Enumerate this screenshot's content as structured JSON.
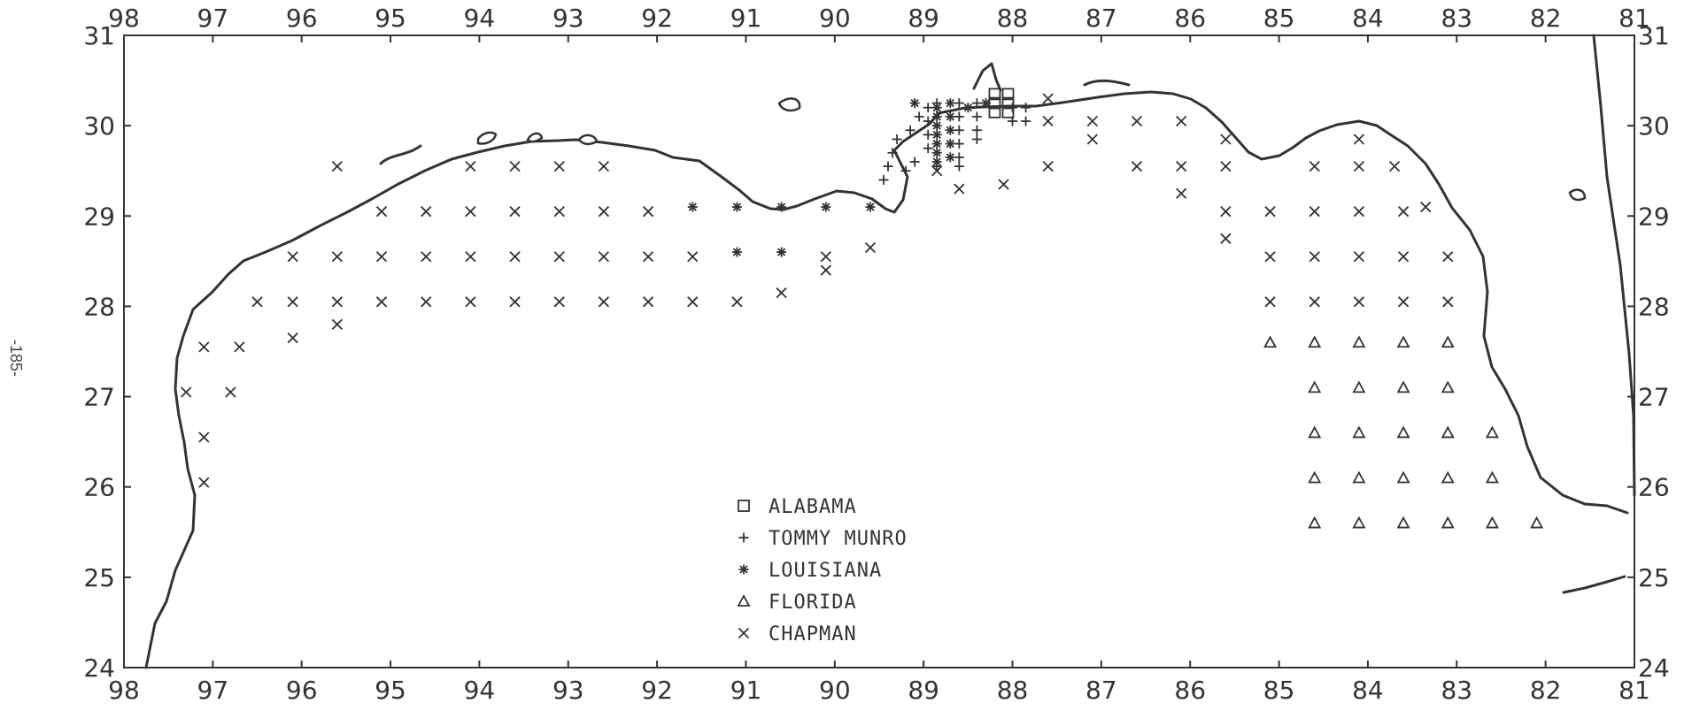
{
  "page_number": "-185-",
  "legend": [
    {
      "label": "ALABAMA",
      "symbol": "square"
    },
    {
      "label": "TOMMY MUNRO",
      "symbol": "plus"
    },
    {
      "label": "LOUISIANA",
      "symbol": "star"
    },
    {
      "label": "FLORIDA",
      "symbol": "triangle"
    },
    {
      "label": "CHAPMAN",
      "symbol": "x"
    }
  ],
  "chart_data": {
    "type": "scatter",
    "title": "",
    "xlabel": "",
    "ylabel": "",
    "x_ticks_top": [
      "98",
      "97",
      "96",
      "95",
      "94",
      "93",
      "92",
      "91",
      "90",
      "89",
      "88",
      "87",
      "86",
      "85",
      "84",
      "83",
      "82",
      "81"
    ],
    "x_ticks_bottom": [
      "98",
      "97",
      "96",
      "95",
      "94",
      "93",
      "92",
      "91",
      "90",
      "89",
      "88",
      "87",
      "86",
      "85",
      "84",
      "83",
      "82",
      "81"
    ],
    "y_ticks_left": [
      "31",
      "30",
      "29",
      "28",
      "27",
      "26",
      "25",
      "24"
    ],
    "y_ticks_right": [
      "31",
      "30",
      "29",
      "28",
      "27",
      "26",
      "25",
      "24"
    ],
    "xlim": [
      98,
      81
    ],
    "ylim": [
      24,
      31
    ],
    "series": [
      {
        "name": "ALABAMA",
        "symbol": "square",
        "points": [
          [
            88.2,
            30.35
          ],
          [
            88.05,
            30.35
          ],
          [
            88.2,
            30.25
          ],
          [
            88.05,
            30.25
          ],
          [
            88.2,
            30.15
          ],
          [
            88.05,
            30.15
          ]
        ]
      },
      {
        "name": "TOMMY MUNRO",
        "symbol": "plus",
        "points": [
          [
            89.3,
            29.85
          ],
          [
            89.35,
            29.7
          ],
          [
            89.4,
            29.55
          ],
          [
            89.45,
            29.4
          ],
          [
            89.2,
            29.5
          ],
          [
            89.1,
            29.6
          ],
          [
            89.15,
            29.95
          ],
          [
            89.05,
            30.1
          ],
          [
            88.95,
            30.2
          ],
          [
            88.95,
            30.05
          ],
          [
            88.95,
            29.9
          ],
          [
            88.95,
            29.75
          ],
          [
            88.85,
            29.55
          ],
          [
            88.85,
            30.25
          ],
          [
            88.6,
            30.25
          ],
          [
            88.6,
            30.1
          ],
          [
            88.6,
            29.95
          ],
          [
            88.6,
            29.8
          ],
          [
            88.6,
            29.65
          ],
          [
            88.6,
            29.55
          ],
          [
            88.4,
            30.25
          ],
          [
            88.4,
            30.1
          ],
          [
            88.4,
            29.95
          ],
          [
            88.4,
            29.85
          ],
          [
            88.0,
            30.2
          ],
          [
            88.0,
            30.05
          ],
          [
            87.85,
            30.2
          ],
          [
            87.85,
            30.05
          ]
        ]
      },
      {
        "name": "LOUISIANA",
        "symbol": "star",
        "points": [
          [
            91.6,
            29.1
          ],
          [
            91.1,
            29.1
          ],
          [
            90.6,
            29.1
          ],
          [
            90.1,
            29.1
          ],
          [
            89.6,
            29.1
          ],
          [
            91.1,
            28.6
          ],
          [
            90.6,
            28.6
          ],
          [
            88.85,
            30.2
          ],
          [
            88.85,
            30.1
          ],
          [
            88.85,
            30.0
          ],
          [
            88.85,
            29.9
          ],
          [
            88.85,
            29.8
          ],
          [
            88.85,
            29.7
          ],
          [
            88.85,
            29.6
          ],
          [
            88.7,
            30.25
          ],
          [
            88.7,
            30.1
          ],
          [
            88.7,
            29.95
          ],
          [
            88.7,
            29.8
          ],
          [
            88.7,
            29.65
          ],
          [
            88.3,
            30.25
          ],
          [
            88.5,
            30.2
          ],
          [
            89.1,
            30.25
          ]
        ]
      },
      {
        "name": "FLORIDA",
        "symbol": "triangle",
        "points": [
          [
            85.1,
            27.6
          ],
          [
            84.6,
            27.6
          ],
          [
            84.1,
            27.6
          ],
          [
            83.6,
            27.6
          ],
          [
            83.1,
            27.6
          ],
          [
            84.6,
            27.1
          ],
          [
            84.1,
            27.1
          ],
          [
            83.6,
            27.1
          ],
          [
            83.1,
            27.1
          ],
          [
            84.6,
            26.6
          ],
          [
            84.1,
            26.6
          ],
          [
            83.6,
            26.6
          ],
          [
            83.1,
            26.6
          ],
          [
            82.6,
            26.6
          ],
          [
            84.6,
            26.1
          ],
          [
            84.1,
            26.1
          ],
          [
            83.6,
            26.1
          ],
          [
            83.1,
            26.1
          ],
          [
            82.6,
            26.1
          ],
          [
            84.6,
            25.6
          ],
          [
            84.1,
            25.6
          ],
          [
            83.6,
            25.6
          ],
          [
            83.1,
            25.6
          ],
          [
            82.6,
            25.6
          ],
          [
            82.1,
            25.6
          ]
        ]
      },
      {
        "name": "CHAPMAN",
        "symbol": "x",
        "points": [
          [
            97.3,
            27.05
          ],
          [
            97.1,
            27.55
          ],
          [
            96.7,
            27.55
          ],
          [
            96.5,
            28.05
          ],
          [
            96.1,
            28.05
          ],
          [
            95.6,
            28.05
          ],
          [
            95.1,
            28.05
          ],
          [
            94.6,
            28.05
          ],
          [
            94.1,
            28.05
          ],
          [
            93.6,
            28.05
          ],
          [
            93.1,
            28.05
          ],
          [
            92.6,
            28.05
          ],
          [
            92.1,
            28.05
          ],
          [
            91.6,
            28.05
          ],
          [
            91.1,
            28.05
          ],
          [
            96.8,
            27.05
          ],
          [
            97.1,
            26.55
          ],
          [
            97.1,
            26.05
          ],
          [
            96.1,
            27.65
          ],
          [
            95.6,
            27.8
          ],
          [
            96.1,
            28.55
          ],
          [
            95.6,
            28.55
          ],
          [
            95.1,
            28.55
          ],
          [
            94.6,
            28.55
          ],
          [
            94.1,
            28.55
          ],
          [
            93.6,
            28.55
          ],
          [
            93.1,
            28.55
          ],
          [
            92.6,
            28.55
          ],
          [
            92.1,
            28.55
          ],
          [
            91.6,
            28.55
          ],
          [
            95.1,
            29.05
          ],
          [
            94.6,
            29.05
          ],
          [
            94.1,
            29.05
          ],
          [
            93.6,
            29.05
          ],
          [
            93.1,
            29.05
          ],
          [
            92.6,
            29.05
          ],
          [
            92.1,
            29.05
          ],
          [
            95.6,
            29.55
          ],
          [
            94.1,
            29.55
          ],
          [
            93.6,
            29.55
          ],
          [
            93.1,
            29.55
          ],
          [
            92.6,
            29.55
          ],
          [
            90.6,
            28.15
          ],
          [
            90.1,
            28.4
          ],
          [
            90.1,
            28.55
          ],
          [
            89.6,
            28.65
          ],
          [
            88.6,
            29.3
          ],
          [
            88.1,
            29.35
          ],
          [
            88.85,
            29.5
          ],
          [
            87.6,
            30.3
          ],
          [
            87.6,
            30.05
          ],
          [
            87.1,
            30.05
          ],
          [
            87.1,
            29.85
          ],
          [
            86.6,
            30.05
          ],
          [
            86.1,
            30.05
          ],
          [
            87.6,
            29.55
          ],
          [
            86.6,
            29.55
          ],
          [
            86.1,
            29.55
          ],
          [
            86.1,
            29.25
          ],
          [
            85.6,
            29.55
          ],
          [
            85.6,
            29.85
          ],
          [
            85.6,
            29.05
          ],
          [
            85.1,
            29.05
          ],
          [
            84.6,
            29.05
          ],
          [
            84.1,
            29.05
          ],
          [
            83.6,
            29.05
          ],
          [
            83.35,
            29.1
          ],
          [
            85.6,
            28.75
          ],
          [
            85.1,
            28.55
          ],
          [
            84.6,
            28.55
          ],
          [
            84.1,
            28.55
          ],
          [
            83.6,
            28.55
          ],
          [
            83.1,
            28.55
          ],
          [
            85.1,
            28.05
          ],
          [
            84.6,
            28.05
          ],
          [
            84.1,
            28.05
          ],
          [
            83.6,
            28.05
          ],
          [
            83.1,
            28.05
          ],
          [
            84.6,
            29.55
          ],
          [
            84.1,
            29.55
          ],
          [
            83.7,
            29.55
          ],
          [
            84.1,
            29.85
          ]
        ]
      }
    ]
  }
}
